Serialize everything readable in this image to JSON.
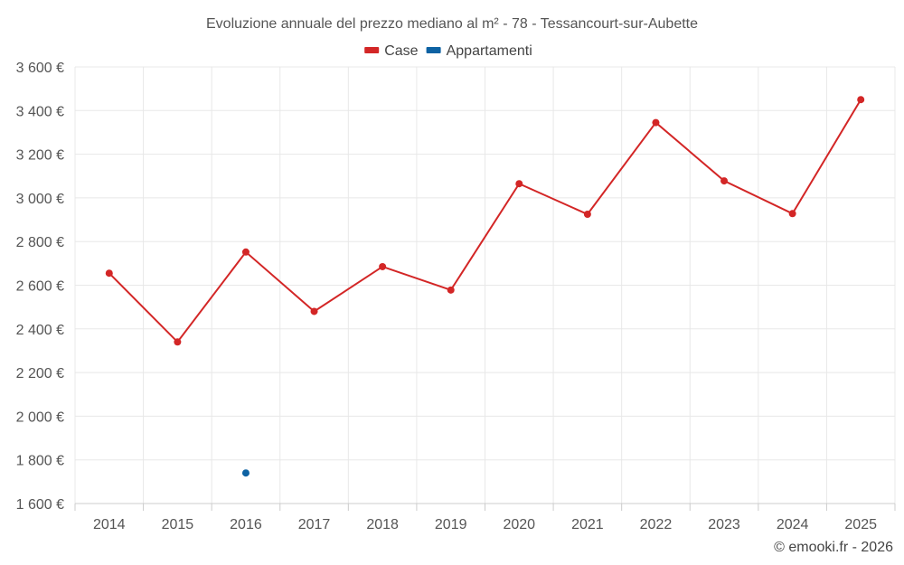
{
  "chart_data": {
    "type": "line",
    "title": "Evoluzione annuale del prezzo mediano al m² - 78 - Tessancourt-sur-Aubette",
    "categories": [
      "2014",
      "2015",
      "2016",
      "2017",
      "2018",
      "2019",
      "2020",
      "2021",
      "2022",
      "2023",
      "2024",
      "2025"
    ],
    "ylim": [
      1600,
      3600
    ],
    "yticks": [
      1600,
      1800,
      2000,
      2200,
      2400,
      2600,
      2800,
      3000,
      3200,
      3400,
      3600
    ],
    "ytick_labels": [
      "1 600 €",
      "1 800 €",
      "2 000 €",
      "2 200 €",
      "2 400 €",
      "2 600 €",
      "2 800 €",
      "3 000 €",
      "3 200 €",
      "3 400 €",
      "3 600 €"
    ],
    "legend_position": "top-center",
    "series": [
      {
        "name": "Case",
        "color": "#d32626",
        "values": [
          2655,
          2340,
          2752,
          2480,
          2685,
          2578,
          3065,
          2925,
          3345,
          3078,
          2928,
          3450
        ]
      },
      {
        "name": "Appartamenti",
        "color": "#0d62a3",
        "values": [
          null,
          null,
          1740,
          null,
          null,
          null,
          null,
          null,
          null,
          null,
          null,
          null
        ]
      }
    ],
    "credit": "© emooki.fr - 2026"
  }
}
